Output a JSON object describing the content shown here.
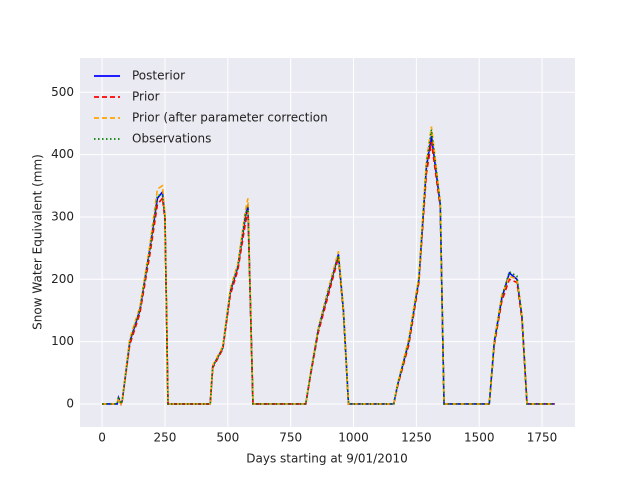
{
  "chart_data": {
    "type": "line",
    "xlabel": "Days starting at 9/01/2010",
    "ylabel": "Snow Water Equivalent (mm)",
    "x": [
      0,
      60,
      65,
      75,
      80,
      110,
      150,
      190,
      220,
      240,
      250,
      262,
      430,
      440,
      480,
      510,
      540,
      570,
      580,
      600,
      810,
      830,
      860,
      900,
      940,
      960,
      980,
      1160,
      1175,
      1220,
      1260,
      1290,
      1310,
      1345,
      1360,
      1540,
      1560,
      1590,
      1620,
      1650,
      1670,
      1690,
      1800
    ],
    "series": [
      {
        "name": "Posterior",
        "color": "#0000ff",
        "dash": "solid",
        "values": [
          0,
          0,
          10,
          0,
          5,
          100,
          150,
          250,
          330,
          340,
          300,
          0,
          0,
          60,
          90,
          180,
          220,
          300,
          320,
          0,
          0,
          50,
          120,
          180,
          240,
          150,
          0,
          0,
          30,
          100,
          200,
          380,
          430,
          320,
          0,
          0,
          100,
          170,
          210,
          200,
          140,
          0,
          0
        ]
      },
      {
        "name": "Prior",
        "color": "#ff0000",
        "dash": "dashed",
        "values": [
          0,
          0,
          8,
          0,
          5,
          95,
          145,
          240,
          320,
          330,
          295,
          0,
          0,
          58,
          88,
          175,
          215,
          290,
          310,
          0,
          0,
          48,
          115,
          175,
          235,
          145,
          0,
          0,
          28,
          95,
          195,
          370,
          420,
          315,
          0,
          0,
          95,
          165,
          200,
          195,
          135,
          0,
          0
        ]
      },
      {
        "name": "Prior (after parameter correction",
        "color": "#ffa500",
        "dash": "dashed",
        "values": [
          0,
          0,
          10,
          0,
          5,
          105,
          155,
          255,
          345,
          350,
          305,
          0,
          0,
          62,
          92,
          185,
          225,
          310,
          330,
          0,
          0,
          52,
          122,
          185,
          245,
          152,
          0,
          0,
          32,
          105,
          205,
          390,
          445,
          325,
          0,
          0,
          102,
          175,
          205,
          200,
          142,
          0,
          0
        ]
      },
      {
        "name": "Observations",
        "color": "#008000",
        "dash": "dotted",
        "values": [
          0,
          0,
          12,
          0,
          5,
          100,
          152,
          248,
          335,
          335,
          298,
          0,
          0,
          60,
          90,
          182,
          222,
          305,
          315,
          0,
          0,
          50,
          120,
          182,
          238,
          148,
          0,
          0,
          30,
          100,
          200,
          385,
          440,
          322,
          0,
          0,
          98,
          172,
          212,
          205,
          140,
          0,
          0
        ]
      }
    ],
    "xlim": [
      -88,
      1881
    ],
    "ylim": [
      -37,
      555
    ],
    "xticks": [
      0,
      250,
      500,
      750,
      1000,
      1250,
      1500,
      1750
    ],
    "yticks": [
      0,
      100,
      200,
      300,
      400,
      500
    ],
    "grid": true,
    "legend": "upper left"
  }
}
